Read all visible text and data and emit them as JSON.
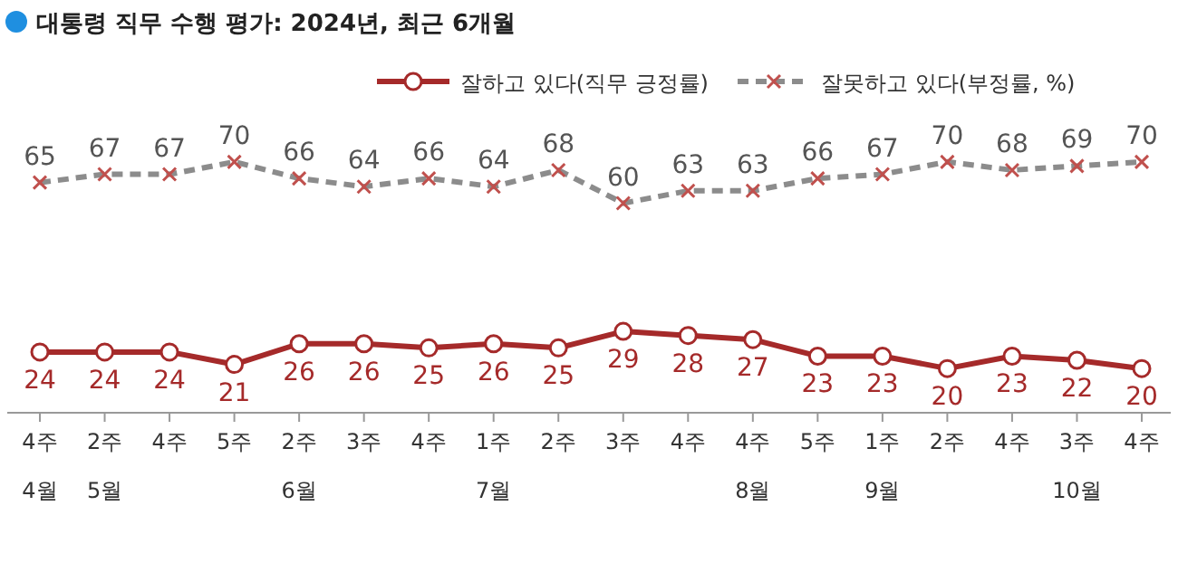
{
  "chart_data": {
    "type": "line",
    "title": "대통령 직무 수행 평가: 2024년, 최근 6개월",
    "categories": [
      "4주\n4월",
      "2주\n5월",
      "4주",
      "5주",
      "2주\n6월",
      "3주",
      "4주",
      "1주\n7월",
      "2주",
      "3주",
      "4주",
      "4주\n8월",
      "5주",
      "1주\n9월",
      "2주",
      "4주",
      "3주\n10월",
      "4주"
    ],
    "series": [
      {
        "name": "잘하고 있다(직무 긍정률)",
        "color": "#a52a2a",
        "marker": "circle",
        "line_style": "solid",
        "values": [
          24,
          24,
          24,
          21,
          26,
          26,
          25,
          26,
          25,
          29,
          28,
          27,
          23,
          23,
          20,
          23,
          22,
          20
        ]
      },
      {
        "name": "잘못하고 있다(부정률, %)",
        "color": "#8c8c8c",
        "marker": "cross",
        "line_style": "dashed",
        "values": [
          65,
          67,
          67,
          70,
          66,
          64,
          66,
          64,
          68,
          60,
          63,
          63,
          66,
          67,
          70,
          68,
          69,
          70
        ]
      }
    ],
    "data_labels": true,
    "legend": "top right"
  }
}
